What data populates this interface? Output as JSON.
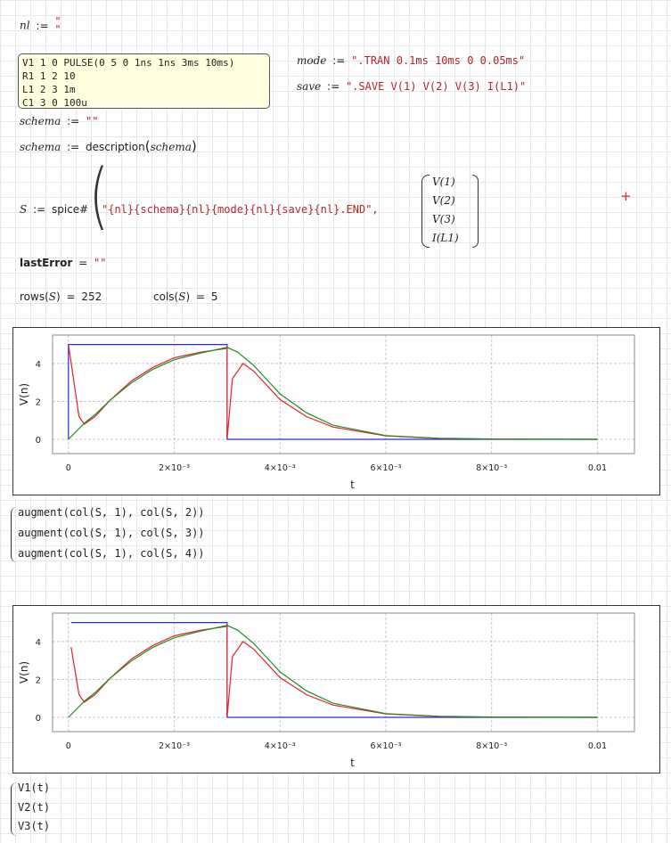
{
  "nl_def": {
    "name": "nl",
    "assign": ":=",
    "value": "\"\n\""
  },
  "netlist_lines": [
    "V1 1 0 PULSE(0 5 0 1ns 1ns 3ms 10ms)",
    "R1 1 2 10",
    "L1 2 3 1m",
    "C1 3 0 100u"
  ],
  "mode_def": {
    "name": "mode",
    "assign": ":=",
    "value": "\".TRAN 0.1ms 10ms 0 0.05ms\""
  },
  "save_def": {
    "name": "save",
    "assign": ":=",
    "value": "\".SAVE V(1) V(2) V(3) I(L1)\""
  },
  "schema_empty": {
    "name": "schema",
    "assign": ":=",
    "value": "\"\""
  },
  "schema_desc": {
    "name": "schema",
    "assign": ":=",
    "func": "description",
    "arg": "schema"
  },
  "spice_def": {
    "name": "S",
    "assign": ":=",
    "func": "spice#",
    "arg_string": "\"{nl}{schema}{nl}{mode}{nl}{save}{nl}.END\",",
    "vector": [
      "V(1)",
      "V(2)",
      "V(3)",
      "I(L1)"
    ]
  },
  "last_error": {
    "name": "lastError",
    "eq": "=",
    "value": "\"\""
  },
  "rows_expr": {
    "text": "rows",
    "arg": "S",
    "eq": "=",
    "value": "252"
  },
  "cols_expr": {
    "text": "cols",
    "arg": "S",
    "eq": "=",
    "value": "5"
  },
  "augment_lines": [
    "augment(col(S, 1), col(S, 2))",
    "augment(col(S, 1), col(S, 3))",
    "augment(col(S, 1), col(S, 4))"
  ],
  "v_funcs": [
    "V1(t)",
    "V2(t)",
    "V3(t)"
  ],
  "colors": {
    "v1": "#2b2bd6",
    "v2": "#e0202a",
    "v3": "#1e8c1e"
  },
  "chart_data": [
    {
      "type": "line",
      "title": "",
      "xlabel": "t",
      "ylabel": "V(n)",
      "xlim": [
        -0.0003,
        0.0107
      ],
      "ylim": [
        -0.75,
        5.5
      ],
      "x_ticks": [
        0,
        0.002,
        0.004,
        0.006,
        0.008,
        0.01
      ],
      "x_tick_labels": [
        "0",
        "2×10⁻³",
        "4×10⁻³",
        "6×10⁻³",
        "8×10⁻³",
        "0.01"
      ],
      "y_ticks": [
        0,
        2,
        4
      ],
      "y_tick_labels": [
        "0",
        "2",
        "4"
      ],
      "grid": true,
      "series": [
        {
          "color": "#2b2bd6",
          "x": [
            0,
            0,
            0.003,
            0.003,
            0.01
          ],
          "y": [
            0,
            5,
            5,
            0,
            0
          ]
        },
        {
          "color": "#e0202a",
          "x": [
            0,
            0.0002,
            0.0003,
            0.0005,
            0.0008,
            0.0012,
            0.0016,
            0.002,
            0.0025,
            0.003,
            0.003,
            0.0031,
            0.0033,
            0.0035,
            0.004,
            0.0045,
            0.005,
            0.006,
            0.007,
            0.008,
            0.01
          ],
          "y": [
            5,
            1.2,
            0.8,
            1.2,
            2.1,
            3.1,
            3.8,
            4.3,
            4.6,
            4.8,
            0,
            3.2,
            4.0,
            3.6,
            2.1,
            1.2,
            0.65,
            0.18,
            0.05,
            0.01,
            0
          ]
        },
        {
          "color": "#1e8c1e",
          "x": [
            0,
            0.0003,
            0.0005,
            0.0008,
            0.0012,
            0.0016,
            0.002,
            0.0025,
            0.003,
            0.0032,
            0.0035,
            0.004,
            0.0045,
            0.005,
            0.006,
            0.007,
            0.008,
            0.01
          ],
          "y": [
            0,
            0.85,
            1.3,
            2.1,
            3.0,
            3.7,
            4.2,
            4.55,
            4.85,
            4.6,
            3.9,
            2.4,
            1.4,
            0.75,
            0.2,
            0.06,
            0.02,
            0
          ]
        }
      ]
    },
    {
      "type": "line",
      "title": "",
      "xlabel": "t",
      "ylabel": "V(n)",
      "xlim": [
        -0.0003,
        0.0107
      ],
      "ylim": [
        -0.75,
        5.5
      ],
      "x_ticks": [
        0,
        0.002,
        0.004,
        0.006,
        0.008,
        0.01
      ],
      "x_tick_labels": [
        "0",
        "2×10⁻³",
        "4×10⁻³",
        "6×10⁻³",
        "8×10⁻³",
        "0.01"
      ],
      "y_ticks": [
        0,
        2,
        4
      ],
      "y_tick_labels": [
        "0",
        "2",
        "4"
      ],
      "grid": true,
      "series": [
        {
          "color": "#2b2bd6",
          "x": [
            5e-05,
            0.003,
            0.003,
            0.01
          ],
          "y": [
            5,
            5,
            0,
            0
          ]
        },
        {
          "color": "#e0202a",
          "x": [
            5e-05,
            0.0002,
            0.0003,
            0.0005,
            0.0008,
            0.0012,
            0.0016,
            0.002,
            0.0025,
            0.003,
            0.003,
            0.0031,
            0.0033,
            0.0035,
            0.004,
            0.0045,
            0.005,
            0.006,
            0.007,
            0.008,
            0.01
          ],
          "y": [
            3.7,
            1.2,
            0.8,
            1.2,
            2.1,
            3.1,
            3.8,
            4.3,
            4.6,
            4.8,
            0,
            3.2,
            4.0,
            3.6,
            2.1,
            1.2,
            0.65,
            0.18,
            0.05,
            0.01,
            0
          ]
        },
        {
          "color": "#1e8c1e",
          "x": [
            0,
            0.0003,
            0.0005,
            0.0008,
            0.0012,
            0.0016,
            0.002,
            0.0025,
            0.003,
            0.0032,
            0.0035,
            0.004,
            0.0045,
            0.005,
            0.006,
            0.007,
            0.008,
            0.01
          ],
          "y": [
            0,
            0.85,
            1.3,
            2.1,
            3.0,
            3.7,
            4.2,
            4.55,
            4.85,
            4.6,
            3.9,
            2.4,
            1.4,
            0.75,
            0.2,
            0.06,
            0.02,
            0
          ]
        }
      ]
    }
  ]
}
